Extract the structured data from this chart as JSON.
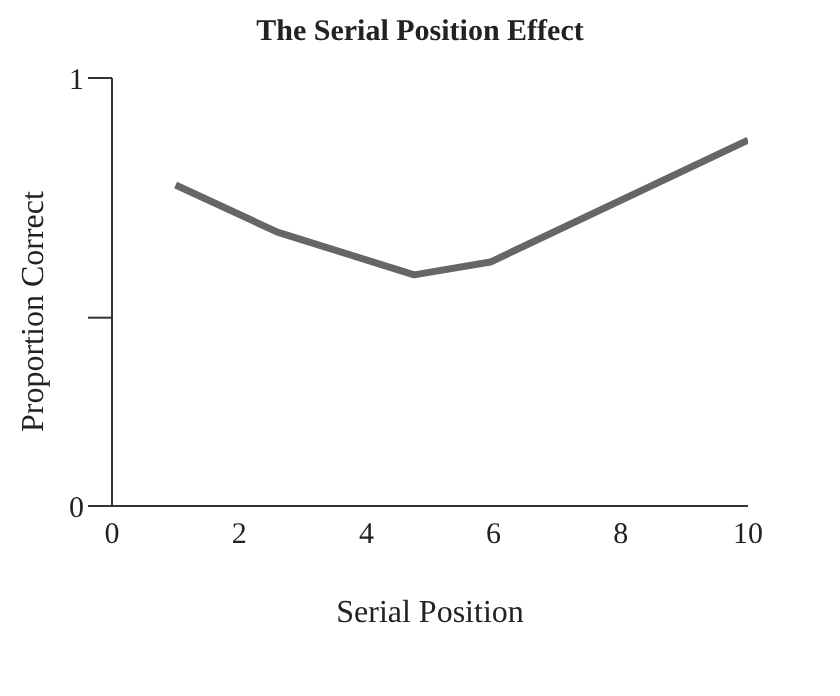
{
  "chart_data": {
    "type": "line",
    "title": "The Serial Position Effect",
    "xlabel": "Serial Position",
    "ylabel": "Proportion Correct",
    "x": [
      1,
      2.6,
      4.75,
      5.95,
      10
    ],
    "series": [
      {
        "color": "#666666",
        "values": [
          0.75,
          0.64,
          0.54,
          0.57,
          0.855
        ]
      }
    ],
    "xlim": [
      0,
      10
    ],
    "xticks": [
      0,
      2,
      4,
      6,
      8,
      10
    ],
    "ylim": [
      0,
      1
    ],
    "yticks": [
      0,
      {
        "value": 0.44,
        "label": null
      },
      1
    ],
    "grid": false,
    "legend": false,
    "marker": "none",
    "line_style": "solid"
  }
}
